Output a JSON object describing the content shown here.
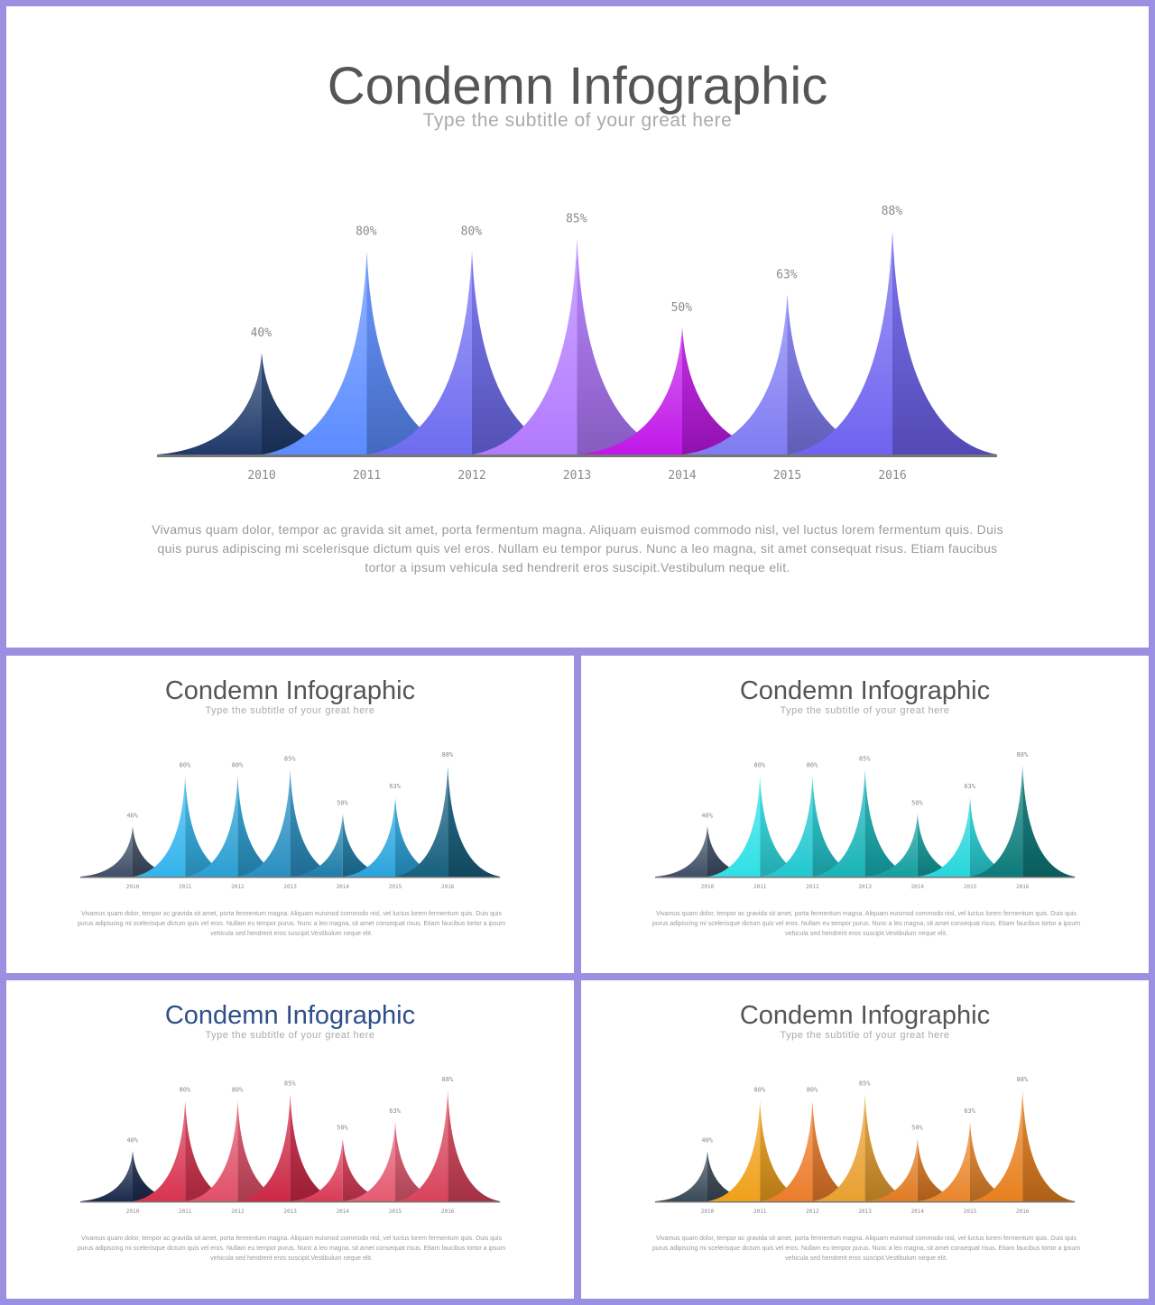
{
  "slides": {
    "main": {
      "title": "Condemn Infographic",
      "subtitle": "Type the subtitle of your great here",
      "body": "Vivamus quam dolor, tempor ac gravida sit amet, porta fermentum magna. Aliquam euismod commodo nisl, vel luctus lorem fermentum quis. Duis quis purus adipiscing mi scelerisque dictum quis vel eros. Nullam eu tempor purus. Nunc a leo magna, sit amet consequat risus. Etiam faucibus tortor a ipsum vehicula sed hendrerit eros suscipit.Vestibulum neque elit."
    },
    "blue": {
      "title": "Condemn Infographic",
      "subtitle": "Type the subtitle of your great here",
      "body": "Vivamus quam dolor, tempor ac gravida sit amet, porta fermentum magna. Aliquam euismod commodo nisl, vel luctus lorem fermentum quis. Duis quis purus adipiscing mi scelerisque dictum quis vel eros. Nullam eu tempor purus. Nunc a leo magna, sit amet consequat risus. Etiam faucibus tortor a ipsum vehicula sed hendrerit eros suscipit.Vestibulum neque elit."
    },
    "teal": {
      "title": "Condemn Infographic",
      "subtitle": "Type the subtitle of your great here",
      "body": "Vivamus quam dolor, tempor ac gravida sit amet, porta fermentum magna. Aliquam euismod commodo nisl, vel luctus lorem fermentum quis. Duis quis purus adipiscing mi scelerisque dictum quis vel eros. Nullam eu tempor purus. Nunc a leo magna, sit amet consequat risus. Etiam faucibus tortor a ipsum vehicula sed hendrerit eros suscipit.Vestibulum neque elit."
    },
    "red": {
      "title": "Condemn Infographic",
      "subtitle": "Type the subtitle of your great here",
      "body": "Vivamus quam dolor, tempor ac gravida sit amet, porta fermentum magna. Aliquam euismod commodo nisl, vel luctus lorem fermentum quis. Duis quis purus adipiscing mi scelerisque dictum quis vel eros. Nullam eu tempor purus. Nunc a leo magna, sit amet consequat risus. Etiam faucibus tortor a ipsum vehicula sed hendrerit eros suscipit.Vestibulum neque elit."
    },
    "orange": {
      "title": "Condemn Infographic",
      "subtitle": "Type the subtitle of your great here",
      "body": "Vivamus quam dolor, tempor ac gravida sit amet, porta fermentum magna. Aliquam euismod commodo nisl, vel luctus lorem fermentum quis. Duis quis purus adipiscing mi scelerisque dictum quis vel eros. Nullam eu tempor purus. Nunc a leo magna, sit amet consequat risus. Etiam faucibus tortor a ipsum vehicula sed hendrerit eros suscipit.Vestibulum neque elit."
    }
  },
  "palettes": {
    "main": [
      "#1f3a6a",
      "#5b8cff",
      "#6f6cf0",
      "#b27aff",
      "#c017e8",
      "#7f7cf2",
      "#6f63f0"
    ],
    "blue": [
      "#3f4f66",
      "#33b4ec",
      "#2a9fd3",
      "#2a8fc2",
      "#1f7eaa",
      "#2aa4dc",
      "#16607f"
    ],
    "teal": [
      "#3f4f66",
      "#2ee0e6",
      "#22c8d0",
      "#18b4b8",
      "#12a09f",
      "#26d6dc",
      "#0c7b7a"
    ],
    "red": [
      "#1c2b4d",
      "#d8334f",
      "#e05068",
      "#cc2846",
      "#d93b57",
      "#e35b71",
      "#d8435b"
    ],
    "orange": [
      "#3a4a58",
      "#f0a01a",
      "#ec7c2a",
      "#e8a030",
      "#e07a22",
      "#e9862c",
      "#e8801e"
    ]
  },
  "chart_data": [
    {
      "type": "area",
      "categories": [
        "2010",
        "2011",
        "2012",
        "2013",
        "2014",
        "2015",
        "2016"
      ],
      "values": [
        40,
        80,
        80,
        85,
        50,
        63,
        88
      ],
      "labels": [
        "40%",
        "80%",
        "80%",
        "85%",
        "50%",
        "63%",
        "88%"
      ],
      "title": "Condemn Infographic",
      "palette": "main"
    },
    {
      "type": "area",
      "categories": [
        "2010",
        "2011",
        "2012",
        "2013",
        "2014",
        "2015",
        "2016"
      ],
      "values": [
        40,
        80,
        80,
        85,
        50,
        63,
        88
      ],
      "labels": [
        "40%",
        "80%",
        "80%",
        "85%",
        "50%",
        "63%",
        "88%"
      ],
      "title": "Condemn Infographic",
      "palette": "blue"
    },
    {
      "type": "area",
      "categories": [
        "2010",
        "2011",
        "2012",
        "2013",
        "2014",
        "2015",
        "2016"
      ],
      "values": [
        40,
        80,
        80,
        85,
        50,
        63,
        88
      ],
      "labels": [
        "40%",
        "80%",
        "80%",
        "85%",
        "50%",
        "63%",
        "88%"
      ],
      "title": "Condemn Infographic",
      "palette": "teal"
    },
    {
      "type": "area",
      "categories": [
        "2010",
        "2011",
        "2012",
        "2013",
        "2014",
        "2015",
        "2016"
      ],
      "values": [
        40,
        80,
        80,
        85,
        50,
        63,
        88
      ],
      "labels": [
        "40%",
        "80%",
        "80%",
        "85%",
        "50%",
        "63%",
        "88%"
      ],
      "title": "Condemn Infographic",
      "palette": "red"
    },
    {
      "type": "area",
      "categories": [
        "2010",
        "2011",
        "2012",
        "2013",
        "2014",
        "2015",
        "2016"
      ],
      "values": [
        40,
        80,
        80,
        85,
        50,
        63,
        88
      ],
      "labels": [
        "40%",
        "80%",
        "80%",
        "85%",
        "50%",
        "63%",
        "88%"
      ],
      "title": "Condemn Infographic",
      "palette": "orange"
    }
  ]
}
